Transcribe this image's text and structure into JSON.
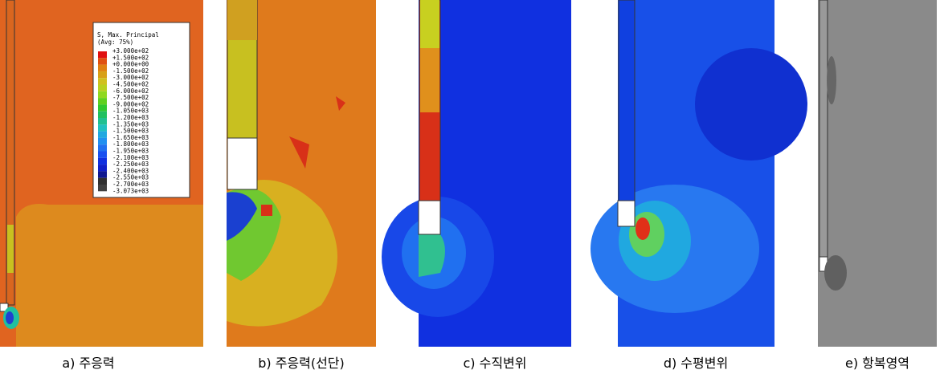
{
  "legend": {
    "title": "S, Max. Principal",
    "subtitle": "(Avg: 75%)",
    "labels": [
      "+3.000e+02",
      "+1.500e+02",
      "+0.000e+00",
      "-1.500e+02",
      "-3.000e+02",
      "-4.500e+02",
      "-6.000e+02",
      "-7.500e+02",
      "-9.000e+02",
      "-1.050e+03",
      "-1.200e+03",
      "-1.350e+03",
      "-1.500e+03",
      "-1.650e+03",
      "-1.800e+03",
      "-1.950e+03",
      "-2.100e+03",
      "-2.250e+03",
      "-2.400e+03",
      "-2.550e+03",
      "-2.700e+03",
      "-3.073e+03"
    ]
  },
  "captions": [
    "a) 주응력",
    "b) 주응력(선단)",
    "c) 수직변위",
    "d) 수평변위",
    "e) 항복영역"
  ]
}
